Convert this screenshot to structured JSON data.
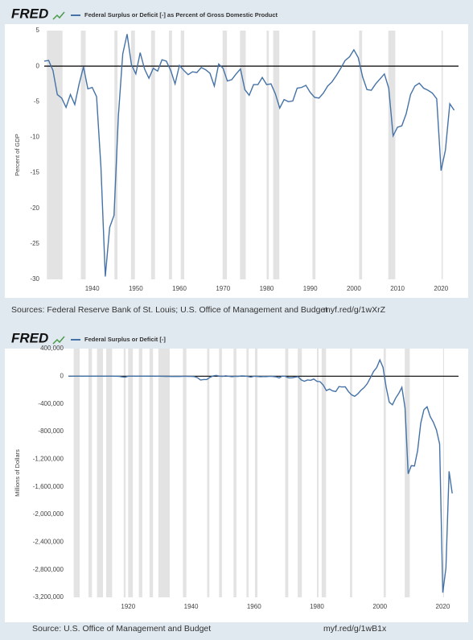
{
  "chart_data": [
    {
      "type": "line",
      "logo": "FRED",
      "ylabel": "Percent of GDP",
      "source": "Sources: Federal Reserve Bank of St. Louis; U.S. Office of Management and Budget",
      "url": "myf.red/g/1wXrZ",
      "x": [
        1929,
        1930,
        1931,
        1932,
        1933,
        1934,
        1935,
        1936,
        1937,
        1938,
        1939,
        1940,
        1941,
        1942,
        1943,
        1944,
        1945,
        1946,
        1947,
        1948,
        1949,
        1950,
        1951,
        1952,
        1953,
        1954,
        1955,
        1956,
        1957,
        1958,
        1959,
        1960,
        1961,
        1962,
        1963,
        1964,
        1965,
        1966,
        1967,
        1968,
        1969,
        1970,
        1971,
        1972,
        1973,
        1974,
        1975,
        1976,
        1977,
        1978,
        1979,
        1980,
        1981,
        1982,
        1983,
        1984,
        1985,
        1986,
        1987,
        1988,
        1989,
        1990,
        1991,
        1992,
        1993,
        1994,
        1995,
        1996,
        1997,
        1998,
        1999,
        2000,
        2001,
        2002,
        2003,
        2004,
        2005,
        2006,
        2007,
        2008,
        2009,
        2010,
        2011,
        2012,
        2013,
        2014,
        2015,
        2016,
        2017,
        2018,
        2019,
        2020,
        2021,
        2022,
        2023
      ],
      "series": [
        {
          "name": "Federal Surplus or Deficit [-] as Percent of Gross Domestic Product",
          "color": "#4572a7",
          "values": [
            0.7,
            0.8,
            -0.6,
            -4.0,
            -4.5,
            -5.8,
            -4.0,
            -5.4,
            -2.5,
            -0.1,
            -3.2,
            -3.0,
            -4.3,
            -14.2,
            -29.6,
            -22.7,
            -21.0,
            -7.0,
            1.7,
            4.5,
            0.2,
            -1.1,
            1.9,
            -0.4,
            -1.7,
            -0.3,
            -0.7,
            0.9,
            0.7,
            -0.6,
            -2.5,
            0.1,
            -0.6,
            -1.2,
            -0.8,
            -0.9,
            -0.2,
            -0.5,
            -1.0,
            -2.8,
            0.3,
            -0.3,
            -2.1,
            -1.9,
            -1.1,
            -0.4,
            -3.3,
            -4.1,
            -2.6,
            -2.6,
            -1.6,
            -2.6,
            -2.5,
            -3.9,
            -5.9,
            -4.7,
            -5.0,
            -4.9,
            -3.1,
            -3.0,
            -2.7,
            -3.7,
            -4.4,
            -4.5,
            -3.8,
            -2.8,
            -2.2,
            -1.3,
            -0.3,
            0.8,
            1.3,
            2.3,
            1.2,
            -1.5,
            -3.3,
            -3.4,
            -2.5,
            -1.8,
            -1.1,
            -3.1,
            -9.8,
            -8.6,
            -8.4,
            -6.7,
            -4.0,
            -2.8,
            -2.4,
            -3.1,
            -3.4,
            -3.8,
            -4.6,
            -14.7,
            -11.8,
            -5.3,
            -6.2
          ]
        }
      ],
      "xlim": [
        1929,
        2024
      ],
      "xticks": [
        1940,
        1950,
        1960,
        1970,
        1980,
        1990,
        2000,
        2010,
        2020
      ],
      "ylim": [
        -30,
        5
      ],
      "yticks": [
        5,
        0,
        -5,
        -10,
        -15,
        -20,
        -25,
        -30
      ],
      "reference_line": 0,
      "recessions": [
        [
          1929.6,
          1933.2
        ],
        [
          1937.4,
          1938.5
        ],
        [
          1945.1,
          1945.8
        ],
        [
          1948.9,
          1949.8
        ],
        [
          1953.5,
          1954.4
        ],
        [
          1957.6,
          1958.3
        ],
        [
          1960.3,
          1961.1
        ],
        [
          1969.9,
          1970.9
        ],
        [
          1973.9,
          1975.2
        ],
        [
          1980.0,
          1980.5
        ],
        [
          1981.5,
          1982.9
        ],
        [
          1990.5,
          1991.2
        ],
        [
          2001.2,
          2001.9
        ],
        [
          2007.9,
          2009.5
        ],
        [
          2020.1,
          2020.4
        ]
      ]
    },
    {
      "type": "line",
      "logo": "FRED",
      "ylabel": "Millions of Dollars",
      "source": "Source: U.S. Office of Management and Budget",
      "url": "myf.red/g/1wB1x",
      "x": [
        1901,
        1902,
        1903,
        1904,
        1905,
        1906,
        1907,
        1908,
        1909,
        1910,
        1911,
        1912,
        1913,
        1914,
        1915,
        1916,
        1917,
        1918,
        1919,
        1920,
        1921,
        1922,
        1923,
        1924,
        1925,
        1926,
        1927,
        1928,
        1929,
        1930,
        1931,
        1932,
        1933,
        1934,
        1935,
        1936,
        1937,
        1938,
        1939,
        1940,
        1941,
        1942,
        1943,
        1944,
        1945,
        1946,
        1947,
        1948,
        1949,
        1950,
        1951,
        1952,
        1953,
        1954,
        1955,
        1956,
        1957,
        1958,
        1959,
        1960,
        1961,
        1962,
        1963,
        1964,
        1965,
        1966,
        1967,
        1968,
        1969,
        1970,
        1971,
        1972,
        1973,
        1974,
        1975,
        1976,
        1977,
        1978,
        1979,
        1980,
        1981,
        1982,
        1983,
        1984,
        1985,
        1986,
        1987,
        1988,
        1989,
        1990,
        1991,
        1992,
        1993,
        1994,
        1995,
        1996,
        1997,
        1998,
        1999,
        2000,
        2001,
        2002,
        2003,
        2004,
        2005,
        2006,
        2007,
        2008,
        2009,
        2010,
        2011,
        2012,
        2013,
        2014,
        2015,
        2016,
        2017,
        2018,
        2019,
        2020,
        2021,
        2022,
        2023
      ],
      "series": [
        {
          "name": "Federal Surplus or Deficit [-]",
          "color": "#4572a7",
          "values": [
            63,
            77,
            45,
            -43,
            -23,
            25,
            87,
            -57,
            -89,
            -18,
            11,
            3,
            0,
            -36,
            -63,
            48,
            -853,
            -9032,
            -13363,
            291,
            509,
            736,
            713,
            963,
            717,
            865,
            1155,
            939,
            734,
            738,
            -462,
            -2735,
            -2602,
            -3586,
            -2803,
            -4304,
            -2193,
            -89,
            -2846,
            -2920,
            -4941,
            -20503,
            -54554,
            -47557,
            -47553,
            -15936,
            4018,
            11796,
            580,
            -3119,
            6102,
            -1519,
            -6493,
            -1154,
            -2993,
            3947,
            3412,
            -2769,
            -12849,
            301,
            -3335,
            -7146,
            -4756,
            -5915,
            -1411,
            -3698,
            -8643,
            -25161,
            3242,
            -2842,
            -23033,
            -23373,
            -14908,
            -6135,
            -53242,
            -73732,
            -53659,
            -59185,
            -40726,
            -73830,
            -78968,
            -127977,
            -207802,
            -185367,
            -212308,
            -221227,
            -149730,
            -155178,
            -152639,
            -221036,
            -269238,
            -290321,
            -255051,
            -203186,
            -163952,
            -107431,
            -21884,
            69270,
            125610,
            236241,
            128236,
            -157758,
            -377585,
            -412727,
            -318346,
            -248181,
            -160701,
            -458553,
            -1412688,
            -1294373,
            -1299599,
            -1076573,
            -679775,
            -484600,
            -441960,
            -584651,
            -665446,
            -779137,
            -983592,
            -3132460,
            -2775300,
            -1375900,
            -1695200
          ]
        }
      ],
      "xlim": [
        1901,
        2025
      ],
      "xticks": [
        1920,
        1940,
        1960,
        1980,
        2000,
        2020
      ],
      "ylim": [
        -3200000,
        400000
      ],
      "yticks": [
        {
          "value": 400000,
          "label": "400,000"
        },
        0,
        {
          "value": -400000,
          "label": "-400,000"
        },
        {
          "value": -800000,
          "label": "-800,000"
        },
        {
          "value": -1200000,
          "label": "-1,200,000"
        },
        {
          "value": -1600000,
          "label": "-1,600,000"
        },
        {
          "value": -2000000,
          "label": "-2,000,000"
        },
        {
          "value": -2400000,
          "label": "-2,400,000"
        },
        {
          "value": -2800000,
          "label": "-2,800,000"
        },
        {
          "value": -3200000,
          "label": "-3,200,000"
        }
      ],
      "reference_line": 0,
      "recessions": [
        [
          1902.7,
          1904.6
        ],
        [
          1907.4,
          1908.5
        ],
        [
          1910.1,
          1912.0
        ],
        [
          1913.0,
          1914.9
        ],
        [
          1918.6,
          1919.2
        ],
        [
          1920.0,
          1921.5
        ],
        [
          1923.4,
          1924.5
        ],
        [
          1926.8,
          1927.9
        ],
        [
          1929.6,
          1933.2
        ],
        [
          1937.4,
          1938.5
        ],
        [
          1945.1,
          1945.8
        ],
        [
          1948.9,
          1949.8
        ],
        [
          1953.5,
          1954.4
        ],
        [
          1957.6,
          1958.3
        ],
        [
          1960.3,
          1961.1
        ],
        [
          1969.9,
          1970.9
        ],
        [
          1973.9,
          1975.2
        ],
        [
          1980.0,
          1980.5
        ],
        [
          1981.5,
          1982.9
        ],
        [
          1990.5,
          1991.2
        ],
        [
          2001.2,
          2001.9
        ],
        [
          2007.9,
          2009.5
        ],
        [
          2020.1,
          2020.4
        ]
      ]
    }
  ]
}
